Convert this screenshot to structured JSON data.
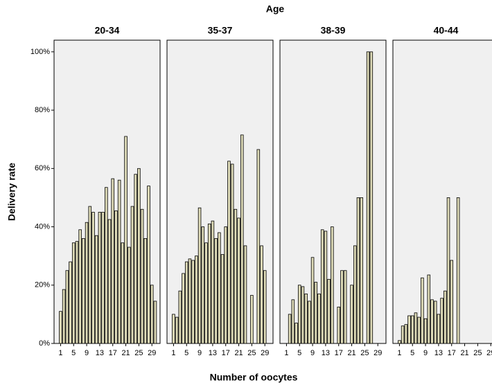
{
  "chart_data": {
    "type": "bar",
    "title": "Age",
    "x_label": "Number of oocytes",
    "y_label": "Delivery rate",
    "color": "#dedbb8",
    "panel_background": "#f0f0f0",
    "x": [
      1,
      2,
      3,
      4,
      5,
      6,
      7,
      8,
      9,
      10,
      11,
      12,
      13,
      14,
      15,
      16,
      17,
      18,
      19,
      20,
      21,
      22,
      23,
      24,
      25,
      26,
      27,
      28,
      29,
      30
    ],
    "xlim": [
      -1,
      31.5
    ],
    "xticks": [
      1,
      5,
      9,
      13,
      17,
      21,
      25,
      29
    ],
    "ylim": [
      0,
      104
    ],
    "yticks": [
      {
        "value": 0,
        "label": "0%"
      },
      {
        "value": 20,
        "label": "20%"
      },
      {
        "value": 40,
        "label": "40%"
      },
      {
        "value": 60,
        "label": "60%"
      },
      {
        "value": 80,
        "label": "80%"
      },
      {
        "value": 100,
        "label": "100%"
      }
    ],
    "panels": [
      {
        "name": "20-34",
        "values": [
          11,
          18.5,
          25,
          28,
          34.5,
          35,
          39,
          36,
          41.5,
          47,
          45,
          37,
          45,
          45,
          53.5,
          42.5,
          56.5,
          45.5,
          56,
          34.5,
          71,
          33,
          47,
          58,
          60,
          46,
          36,
          54,
          20,
          14.5
        ]
      },
      {
        "name": "35-37",
        "values": [
          10,
          9,
          18,
          24,
          28,
          29,
          28.5,
          30,
          46.5,
          40,
          34.5,
          41,
          42,
          36,
          38,
          30.5,
          40,
          62.5,
          61.5,
          46,
          43,
          71.5,
          33.5,
          null,
          16.5,
          null,
          66.5,
          33.5,
          25,
          null
        ]
      },
      {
        "name": "38-39",
        "values": [
          null,
          10,
          15,
          7,
          20,
          19.5,
          17,
          14.5,
          29.5,
          21,
          17,
          39,
          38.5,
          22,
          40,
          null,
          12.5,
          25,
          25,
          null,
          20,
          33.5,
          50,
          50,
          null,
          100,
          100,
          null,
          null,
          null
        ]
      },
      {
        "name": "40-44",
        "values": [
          1,
          6,
          6.5,
          9.5,
          9.5,
          10.5,
          9,
          22.5,
          8.5,
          23.5,
          15,
          14.5,
          10,
          15.5,
          18,
          50,
          28.5,
          null,
          50,
          null,
          null,
          null,
          null,
          null,
          null,
          null,
          null,
          null,
          null,
          null
        ]
      }
    ]
  }
}
